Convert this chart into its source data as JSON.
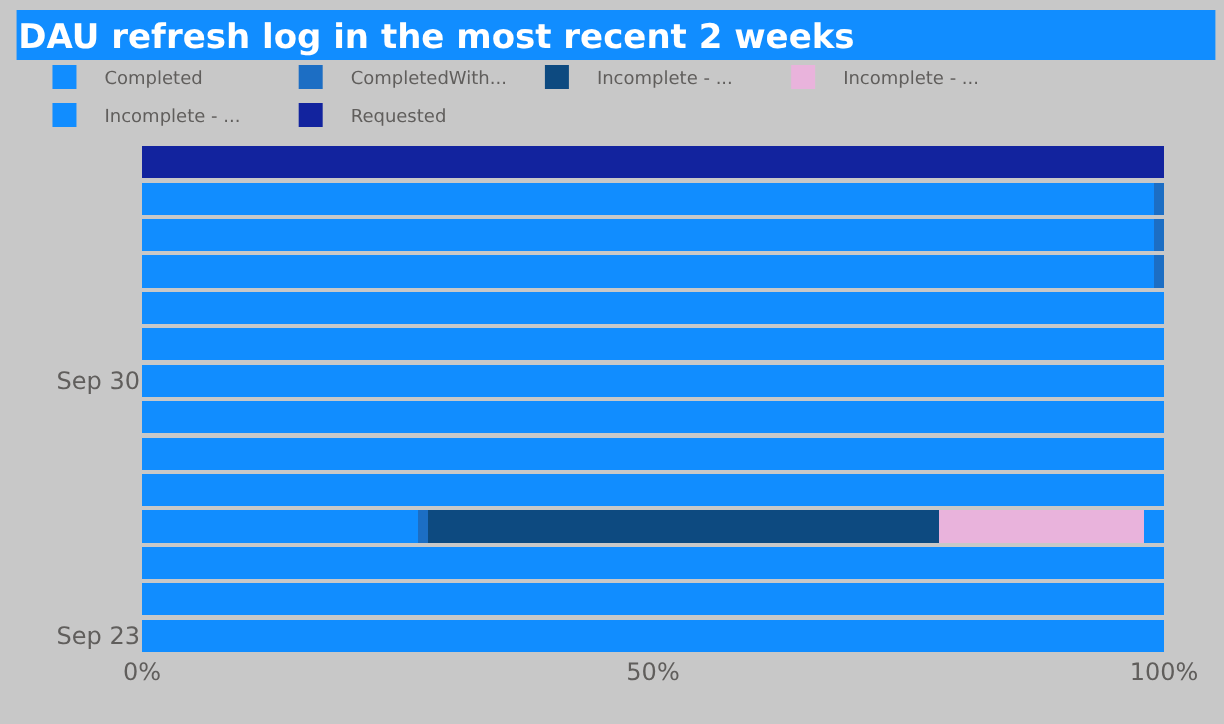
{
  "chart_data": {
    "type": "bar",
    "orientation": "horizontal",
    "stacked": true,
    "title": "DAU refresh log in the most recent 2 weeks",
    "categories": [
      null,
      null,
      null,
      null,
      null,
      null,
      "Sep 30",
      null,
      null,
      null,
      null,
      null,
      null,
      "Sep 23"
    ],
    "series": [
      {
        "name": "Completed",
        "color": "#118dff",
        "values": [
          null,
          99,
          99,
          99,
          100,
          100,
          100,
          100,
          100,
          100,
          27,
          100,
          100,
          100
        ]
      },
      {
        "name": "CompletedWith...",
        "color": "#1c6ec4",
        "values": [
          null,
          1,
          1,
          1,
          null,
          null,
          null,
          null,
          null,
          null,
          1,
          null,
          null,
          null
        ]
      },
      {
        "name": "Incomplete - ...",
        "color": "#0d4a80",
        "values": [
          null,
          null,
          null,
          null,
          null,
          null,
          null,
          null,
          null,
          null,
          50,
          null,
          null,
          null
        ]
      },
      {
        "name": "Incomplete - ...",
        "color": "#e9b3dc",
        "values": [
          null,
          null,
          null,
          null,
          null,
          null,
          null,
          null,
          null,
          null,
          20,
          null,
          null,
          null
        ]
      },
      {
        "name": "Incomplete - ...",
        "color": "#118dff",
        "values": [
          null,
          null,
          null,
          null,
          null,
          null,
          null,
          null,
          null,
          null,
          2,
          null,
          null,
          null
        ]
      },
      {
        "name": "Requested",
        "color": "#12239e",
        "values": [
          100,
          null,
          null,
          null,
          null,
          null,
          null,
          null,
          null,
          null,
          null,
          null,
          null,
          null
        ]
      }
    ],
    "xlim": [
      0,
      100
    ],
    "xticks": [
      {
        "value": 0,
        "label": "0%"
      },
      {
        "value": 50,
        "label": "50%"
      },
      {
        "value": 100,
        "label": "100%"
      }
    ],
    "legend": "top",
    "grid": false
  }
}
